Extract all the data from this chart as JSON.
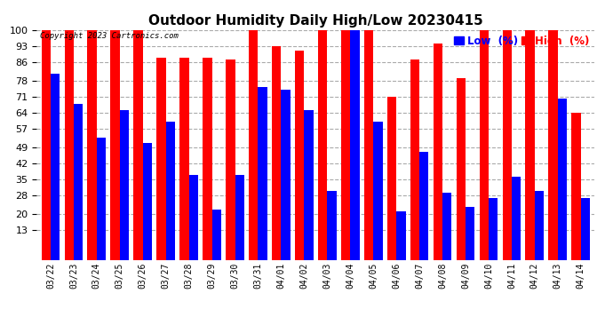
{
  "title": "Outdoor Humidity Daily High/Low 20230415",
  "copyright": "Copyright 2023 Cartronics.com",
  "legend_low": "Low  (%)",
  "legend_high": "High  (%)",
  "low_color": "#0000ff",
  "high_color": "#ff0000",
  "bg_color": "#ffffff",
  "grid_color": "#aaaaaa",
  "yticks": [
    13,
    20,
    28,
    35,
    42,
    49,
    57,
    64,
    71,
    78,
    86,
    93,
    100
  ],
  "ylim": [
    0,
    100
  ],
  "dates": [
    "03/22",
    "03/23",
    "03/24",
    "03/25",
    "03/26",
    "03/27",
    "03/28",
    "03/29",
    "03/30",
    "03/31",
    "04/01",
    "04/02",
    "04/03",
    "04/04",
    "04/05",
    "04/06",
    "04/07",
    "04/08",
    "04/09",
    "04/10",
    "04/11",
    "04/12",
    "04/13",
    "04/14"
  ],
  "high_values": [
    100,
    100,
    100,
    100,
    100,
    88,
    88,
    88,
    87,
    100,
    93,
    91,
    100,
    100,
    100,
    71,
    87,
    94,
    79,
    100,
    100,
    100,
    100,
    64
  ],
  "low_values": [
    81,
    68,
    53,
    65,
    51,
    60,
    37,
    22,
    37,
    75,
    74,
    65,
    30,
    100,
    60,
    21,
    47,
    29,
    23,
    27,
    36,
    30,
    70,
    27
  ]
}
